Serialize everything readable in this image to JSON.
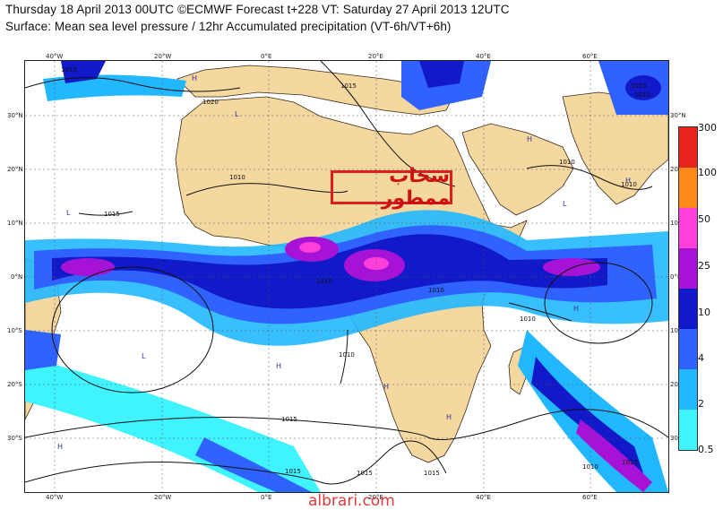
{
  "title_line1": "Thursday 18 April 2013 00UTC ©ECMWF Forecast t+228 VT: Saturday 27 April 2013 12UTC",
  "title_line2": "Surface: Mean sea level pressure / 12hr Accumulated precipitation (VT-6h/VT+6h)",
  "lon_labels": [
    "40°W",
    "20°W",
    "0°E",
    "20°E",
    "40°E",
    "60°E"
  ],
  "lat_labels": [
    "30°N",
    "20°N",
    "10°N",
    "0°N",
    "10°S",
    "20°S",
    "30°S"
  ],
  "legend": {
    "values": [
      "300",
      "100",
      "50",
      "25",
      "10",
      "4",
      "2",
      "0.5"
    ],
    "colors": [
      "#e8231c",
      "#ff8a1a",
      "#ff3fd8",
      "#a613d6",
      "#1119c9",
      "#2f62ff",
      "#22b8ff",
      "#3ff3ff"
    ]
  },
  "isobar_labels": [
    "1015",
    "1015",
    "1020",
    "1010",
    "1015",
    "1010",
    "1010",
    "1010",
    "1010",
    "1010",
    "1010",
    "1015",
    "1015",
    "1015",
    "1015",
    "1010",
    "1015",
    "1010",
    "1015"
  ],
  "pressure_marks": [
    "H",
    "L"
  ],
  "annotation_text": "سحاب ممطور",
  "watermark": "albrari.com",
  "colors": {
    "land": "#f5d7a0",
    "ocean": "#ffffff",
    "frame": "#222222",
    "annotation_border": "#dd1e1e"
  }
}
